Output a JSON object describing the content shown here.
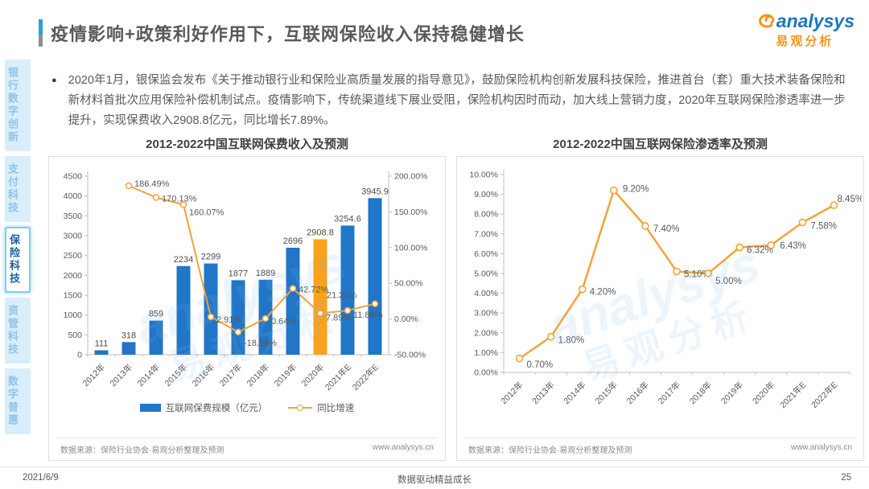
{
  "header": {
    "title": "疫情影响+政策利好作用下，互联网保险收入保持稳健增长",
    "logo_word": "analysys",
    "logo_sub": "易观分析"
  },
  "sidebar": {
    "items": [
      {
        "label": "银行数字创新",
        "active": false
      },
      {
        "label": "支付科技",
        "active": false
      },
      {
        "label": "保险科技",
        "active": true
      },
      {
        "label": "资管科技",
        "active": false
      },
      {
        "label": "数字普惠",
        "active": false
      }
    ]
  },
  "bullet": {
    "text": "2020年1月，银保监会发布《关于推动银行业和保险业高质量发展的指导意见》，鼓励保险机构创新发展科技保险，推进首台（套）重大技术装备保险和新材料首批次应用保险补偿机制试点。疫情影响下，传统渠道线下展业受阻，保险机构因时而动，加大线上营销力度，2020年互联网保险渗透率进一步提升，实现保费收入2908.8亿元，同比增长7.89%。"
  },
  "chart_data": [
    {
      "type": "bar",
      "title": "2012-2022中国互联网保费收入及预测",
      "categories": [
        "2012年",
        "2013年",
        "2014年",
        "2015年",
        "2016年",
        "2017年",
        "2018年",
        "2019年",
        "2020年",
        "2021年E",
        "2022年E"
      ],
      "series": [
        {
          "name": "互联网保费规模（亿元）",
          "type": "bar",
          "values": [
            111,
            318,
            859,
            2234,
            2299,
            1877,
            1889,
            2696,
            2908.8,
            3254.6,
            3945.9
          ],
          "value_labels": [
            "111",
            "318",
            "859",
            "2234",
            "2299",
            "1877",
            "1889",
            "2696",
            "2908.8",
            "3254.6",
            "3945.9"
          ],
          "highlight_index": 8
        },
        {
          "name": "同比增速",
          "type": "line",
          "values": [
            null,
            186.49,
            170.13,
            160.07,
            2.91,
            -18.36,
            0.64,
            42.72,
            7.89,
            11.89,
            21.24
          ],
          "value_labels": [
            "",
            "186.49%",
            "170.13%",
            "160.07%",
            "2.91%",
            "-18.36%",
            "0.64%",
            "42.72%",
            "7.89%",
            "11.89%",
            "21.24%"
          ]
        }
      ],
      "left_axis": {
        "min": 0,
        "max": 4500,
        "step": 500
      },
      "right_axis": {
        "min": -50,
        "max": 200,
        "step": 50,
        "suffix": "%"
      },
      "legend": [
        "互联网保费规模（亿元）",
        "同比增速"
      ],
      "grid": false,
      "legend_position": "bottom",
      "source": "数据来源：保险行业协会·易观分析整理及预测",
      "website": "www.analysys.cn"
    },
    {
      "type": "line",
      "title": "2012-2022中国互联网保险渗透率及预测",
      "categories": [
        "2012年",
        "2013年",
        "2014年",
        "2015年",
        "2016年",
        "2017年",
        "2018年",
        "2019年",
        "2020年",
        "2021年E",
        "2022年E"
      ],
      "values": [
        0.7,
        1.8,
        4.2,
        9.2,
        7.4,
        5.1,
        5.0,
        6.32,
        6.43,
        7.58,
        8.45
      ],
      "value_labels": [
        "0.70%",
        "1.80%",
        "4.20%",
        "9.20%",
        "7.40%",
        "5.10%",
        "5.00%",
        "6.32%",
        "6.43%",
        "7.58%",
        "8.45%"
      ],
      "y_axis": {
        "min": 0,
        "max": 10,
        "step": 1,
        "suffix": "%"
      },
      "grid": false,
      "source": "数据来源：保险行业协会·易观分析整理及预测",
      "website": "www.analysys.cn"
    }
  ],
  "watermark": {
    "word": "analysys",
    "sub": "易观分析"
  },
  "footer": {
    "date": "2021/6/9",
    "center": "数据驱动精益成长",
    "page": "25"
  },
  "colors": {
    "bar_blue": "#2176C7",
    "bar_highlight_orange": "#FAA21B",
    "line_orange": "#F2A33A",
    "axis_gray": "#BFBFBF",
    "label_gray": "#595959",
    "sidebar_active_text": "#1A5E9E",
    "logo_blue": "#1878BE",
    "logo_orange": "#F7941E"
  }
}
